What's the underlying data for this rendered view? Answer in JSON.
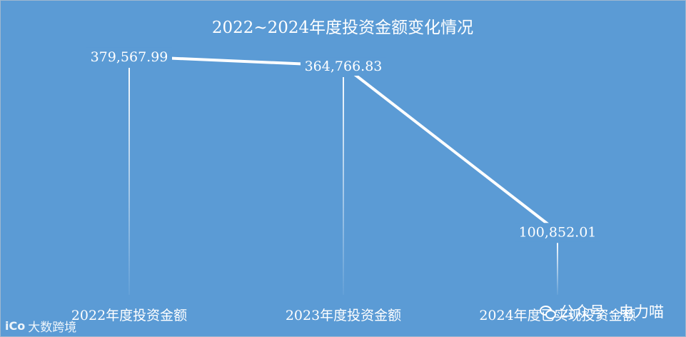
{
  "chart_data": {
    "type": "line",
    "title": "2022~2024年度投资金额变化情况",
    "categories": [
      "2022年度投资金额",
      "2023年度投资金额",
      "2024年度已实现投资金额"
    ],
    "series": [
      {
        "values": [
          379567.99,
          364766.83,
          100852.01
        ]
      }
    ],
    "data_labels": [
      "379,567.99",
      "364,766.83",
      "100,852.01"
    ],
    "ylim": [
      0,
      400000
    ],
    "grid": false,
    "legend": "none",
    "colors": {
      "background": "#5b9bd5",
      "line": "#ffffff"
    }
  },
  "watermarks": {
    "right_text": "公众号 · 电力喵",
    "left_text": "大数跨境",
    "left_mark": "iCo"
  }
}
